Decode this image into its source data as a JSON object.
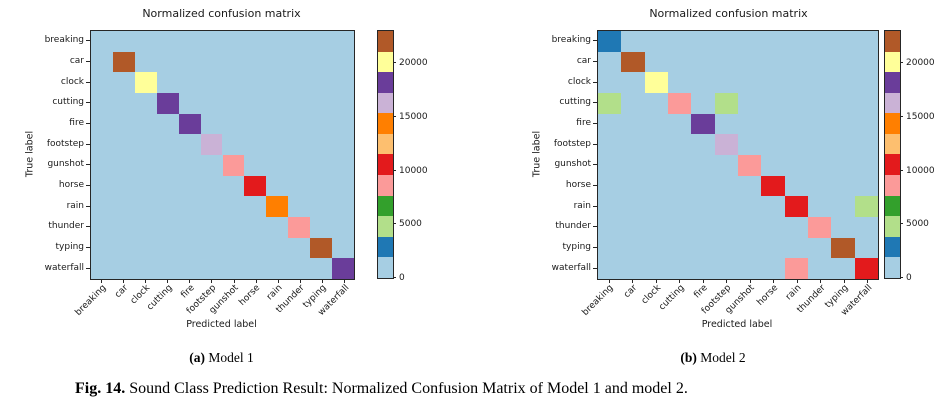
{
  "classes": [
    "breaking",
    "car",
    "clock",
    "cutting",
    "fire",
    "footstep",
    "gunshot",
    "horse",
    "rain",
    "thunder",
    "typing",
    "waterfall"
  ],
  "colormap_colors": [
    "#a6cee3",
    "#1f78b4",
    "#b2df8a",
    "#33a02c",
    "#fb9a99",
    "#e31a1c",
    "#fdbf6f",
    "#ff7f00",
    "#cab2d6",
    "#6a3d9a",
    "#ffff99",
    "#b15928"
  ],
  "panels": [
    {
      "caption_bold": "(a)",
      "caption": "Model 1"
    },
    {
      "caption_bold": "(b)",
      "caption": "Model 2"
    }
  ],
  "figure_caption": {
    "bold": "Fig. 14.",
    "text": "Sound Class Prediction Result: Normalized Confusion Matrix of Model 1 and model 2."
  },
  "chart_data": [
    {
      "type": "heatmap",
      "title": "Normalized confusion matrix",
      "subfigure_label": "(a) Model 1",
      "xlabel": "Predicted label",
      "ylabel": "True label",
      "x_categories": [
        "breaking",
        "car",
        "clock",
        "cutting",
        "fire",
        "footstep",
        "gunshot",
        "horse",
        "rain",
        "thunder",
        "typing",
        "waterfall"
      ],
      "y_categories": [
        "breaking",
        "car",
        "clock",
        "cutting",
        "fire",
        "footstep",
        "gunshot",
        "horse",
        "rain",
        "thunder",
        "typing",
        "waterfall"
      ],
      "matrix": [
        [
          1500,
          0,
          0,
          0,
          0,
          0,
          0,
          0,
          0,
          0,
          0,
          0
        ],
        [
          0,
          22000,
          0,
          0,
          0,
          0,
          0,
          0,
          0,
          0,
          0,
          0
        ],
        [
          0,
          0,
          20100,
          0,
          0,
          0,
          0,
          0,
          0,
          0,
          0,
          0
        ],
        [
          0,
          0,
          0,
          18200,
          0,
          0,
          0,
          0,
          0,
          0,
          0,
          0
        ],
        [
          0,
          0,
          0,
          0,
          18200,
          0,
          0,
          0,
          0,
          0,
          0,
          0
        ],
        [
          0,
          0,
          0,
          0,
          0,
          16300,
          0,
          0,
          0,
          0,
          0,
          0
        ],
        [
          0,
          0,
          0,
          0,
          0,
          0,
          8600,
          0,
          0,
          0,
          0,
          0
        ],
        [
          0,
          0,
          0,
          0,
          0,
          0,
          0,
          10500,
          0,
          0,
          0,
          0
        ],
        [
          0,
          0,
          0,
          0,
          0,
          0,
          0,
          0,
          14400,
          0,
          0,
          0
        ],
        [
          0,
          0,
          0,
          0,
          0,
          0,
          0,
          0,
          0,
          8600,
          0,
          0
        ],
        [
          0,
          0,
          0,
          0,
          0,
          0,
          0,
          0,
          0,
          0,
          22000,
          0
        ],
        [
          0,
          0,
          0,
          0,
          0,
          0,
          0,
          0,
          0,
          0,
          0,
          18200
        ]
      ],
      "vmin": 0,
      "vmax": 23000,
      "colorbar_ticks": [
        0,
        5000,
        10000,
        15000,
        20000
      ],
      "colormap": "Paired, 12 discrete bins",
      "legend_position": "right colorbar"
    },
    {
      "type": "heatmap",
      "title": "Normalized confusion matrix",
      "subfigure_label": "(b) Model 2",
      "xlabel": "Predicted label",
      "ylabel": "True label",
      "x_categories": [
        "breaking",
        "car",
        "clock",
        "cutting",
        "fire",
        "footstep",
        "gunshot",
        "horse",
        "rain",
        "thunder",
        "typing",
        "waterfall"
      ],
      "y_categories": [
        "breaking",
        "car",
        "clock",
        "cutting",
        "fire",
        "footstep",
        "gunshot",
        "horse",
        "rain",
        "thunder",
        "typing",
        "waterfall"
      ],
      "matrix": [
        [
          2900,
          0,
          0,
          0,
          0,
          0,
          0,
          0,
          0,
          0,
          0,
          0
        ],
        [
          0,
          22000,
          0,
          0,
          0,
          0,
          0,
          0,
          0,
          0,
          0,
          0
        ],
        [
          0,
          0,
          20100,
          0,
          0,
          0,
          0,
          0,
          0,
          0,
          0,
          0
        ],
        [
          4800,
          0,
          0,
          8600,
          0,
          4800,
          0,
          0,
          0,
          0,
          0,
          0
        ],
        [
          0,
          0,
          0,
          0,
          18200,
          0,
          0,
          0,
          0,
          0,
          0,
          0
        ],
        [
          0,
          0,
          0,
          0,
          0,
          16300,
          0,
          0,
          0,
          0,
          0,
          0
        ],
        [
          0,
          0,
          0,
          0,
          0,
          0,
          8600,
          0,
          0,
          0,
          0,
          0
        ],
        [
          0,
          0,
          0,
          0,
          0,
          0,
          0,
          10500,
          0,
          0,
          0,
          0
        ],
        [
          0,
          0,
          0,
          0,
          0,
          0,
          0,
          0,
          10500,
          0,
          0,
          4800
        ],
        [
          0,
          0,
          0,
          0,
          0,
          0,
          0,
          0,
          0,
          8600,
          0,
          0
        ],
        [
          0,
          0,
          0,
          0,
          0,
          0,
          0,
          0,
          0,
          0,
          22000,
          0
        ],
        [
          0,
          0,
          0,
          0,
          0,
          0,
          0,
          0,
          8600,
          0,
          0,
          10500
        ]
      ],
      "vmin": 0,
      "vmax": 23000,
      "colorbar_ticks": [
        0,
        5000,
        10000,
        15000,
        20000
      ],
      "colormap": "Paired, 12 discrete bins",
      "legend_position": "right colorbar"
    }
  ]
}
